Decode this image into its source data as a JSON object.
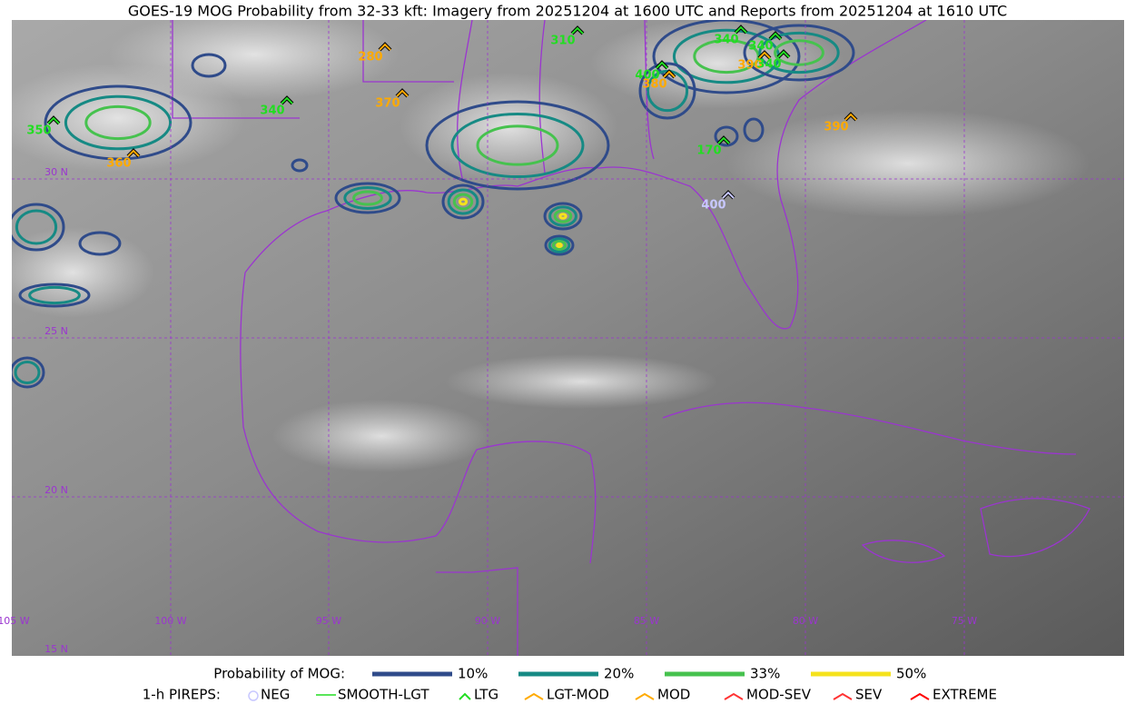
{
  "title": "GOES-19 MOG Probability from 32-33 kft: Imagery from 20251204 at 1600 UTC and Reports from 20251204 at 1610 UTC",
  "graticule": {
    "lat_labels": [
      "30 N",
      "25 N",
      "20 N",
      "15 N"
    ],
    "lon_labels": [
      "105 W",
      "100 W",
      "95 W",
      "90 W",
      "85 W",
      "80 W",
      "75 W"
    ]
  },
  "pireps": [
    {
      "label": "280",
      "type": "LGT-MOD"
    },
    {
      "label": "310",
      "type": "LTG"
    },
    {
      "label": "340",
      "type": "LTG"
    },
    {
      "label": "340",
      "type": "LTG"
    },
    {
      "label": "390",
      "type": "LGT-MOD"
    },
    {
      "label": "340",
      "type": "LTG"
    },
    {
      "label": "400",
      "type": "LTG"
    },
    {
      "label": "380",
      "type": "LGT-MOD"
    },
    {
      "label": "340",
      "type": "LTG"
    },
    {
      "label": "370",
      "type": "LGT-MOD"
    },
    {
      "label": "350",
      "type": "LTG"
    },
    {
      "label": "360",
      "type": "LGT-MOD"
    },
    {
      "label": "170",
      "type": "LTG"
    },
    {
      "label": "390",
      "type": "LGT-MOD"
    },
    {
      "label": "400",
      "type": "NEG"
    }
  ],
  "legend": {
    "probability_title": "Probability of MOG:",
    "probability": [
      {
        "label": "10%",
        "color": "#2f4b8a"
      },
      {
        "label": "20%",
        "color": "#168a84"
      },
      {
        "label": "33%",
        "color": "#46c24e"
      },
      {
        "label": "50%",
        "color": "#f5e21c"
      }
    ],
    "pireps_title": "1-h PIREPS:",
    "pireps": [
      {
        "label": "NEG",
        "color": "#c8c8ff"
      },
      {
        "label": "SMOOTH-LGT",
        "color": "#22dd22"
      },
      {
        "label": "LTG",
        "color": "#22dd22"
      },
      {
        "label": "LGT-MOD",
        "color": "#ffaa00"
      },
      {
        "label": "MOD",
        "color": "#ffaa00"
      },
      {
        "label": "MOD-SEV",
        "color": "#ff3333"
      },
      {
        "label": "SEV",
        "color": "#ff3333"
      },
      {
        "label": "EXTREME",
        "color": "#ff0000"
      }
    ]
  }
}
